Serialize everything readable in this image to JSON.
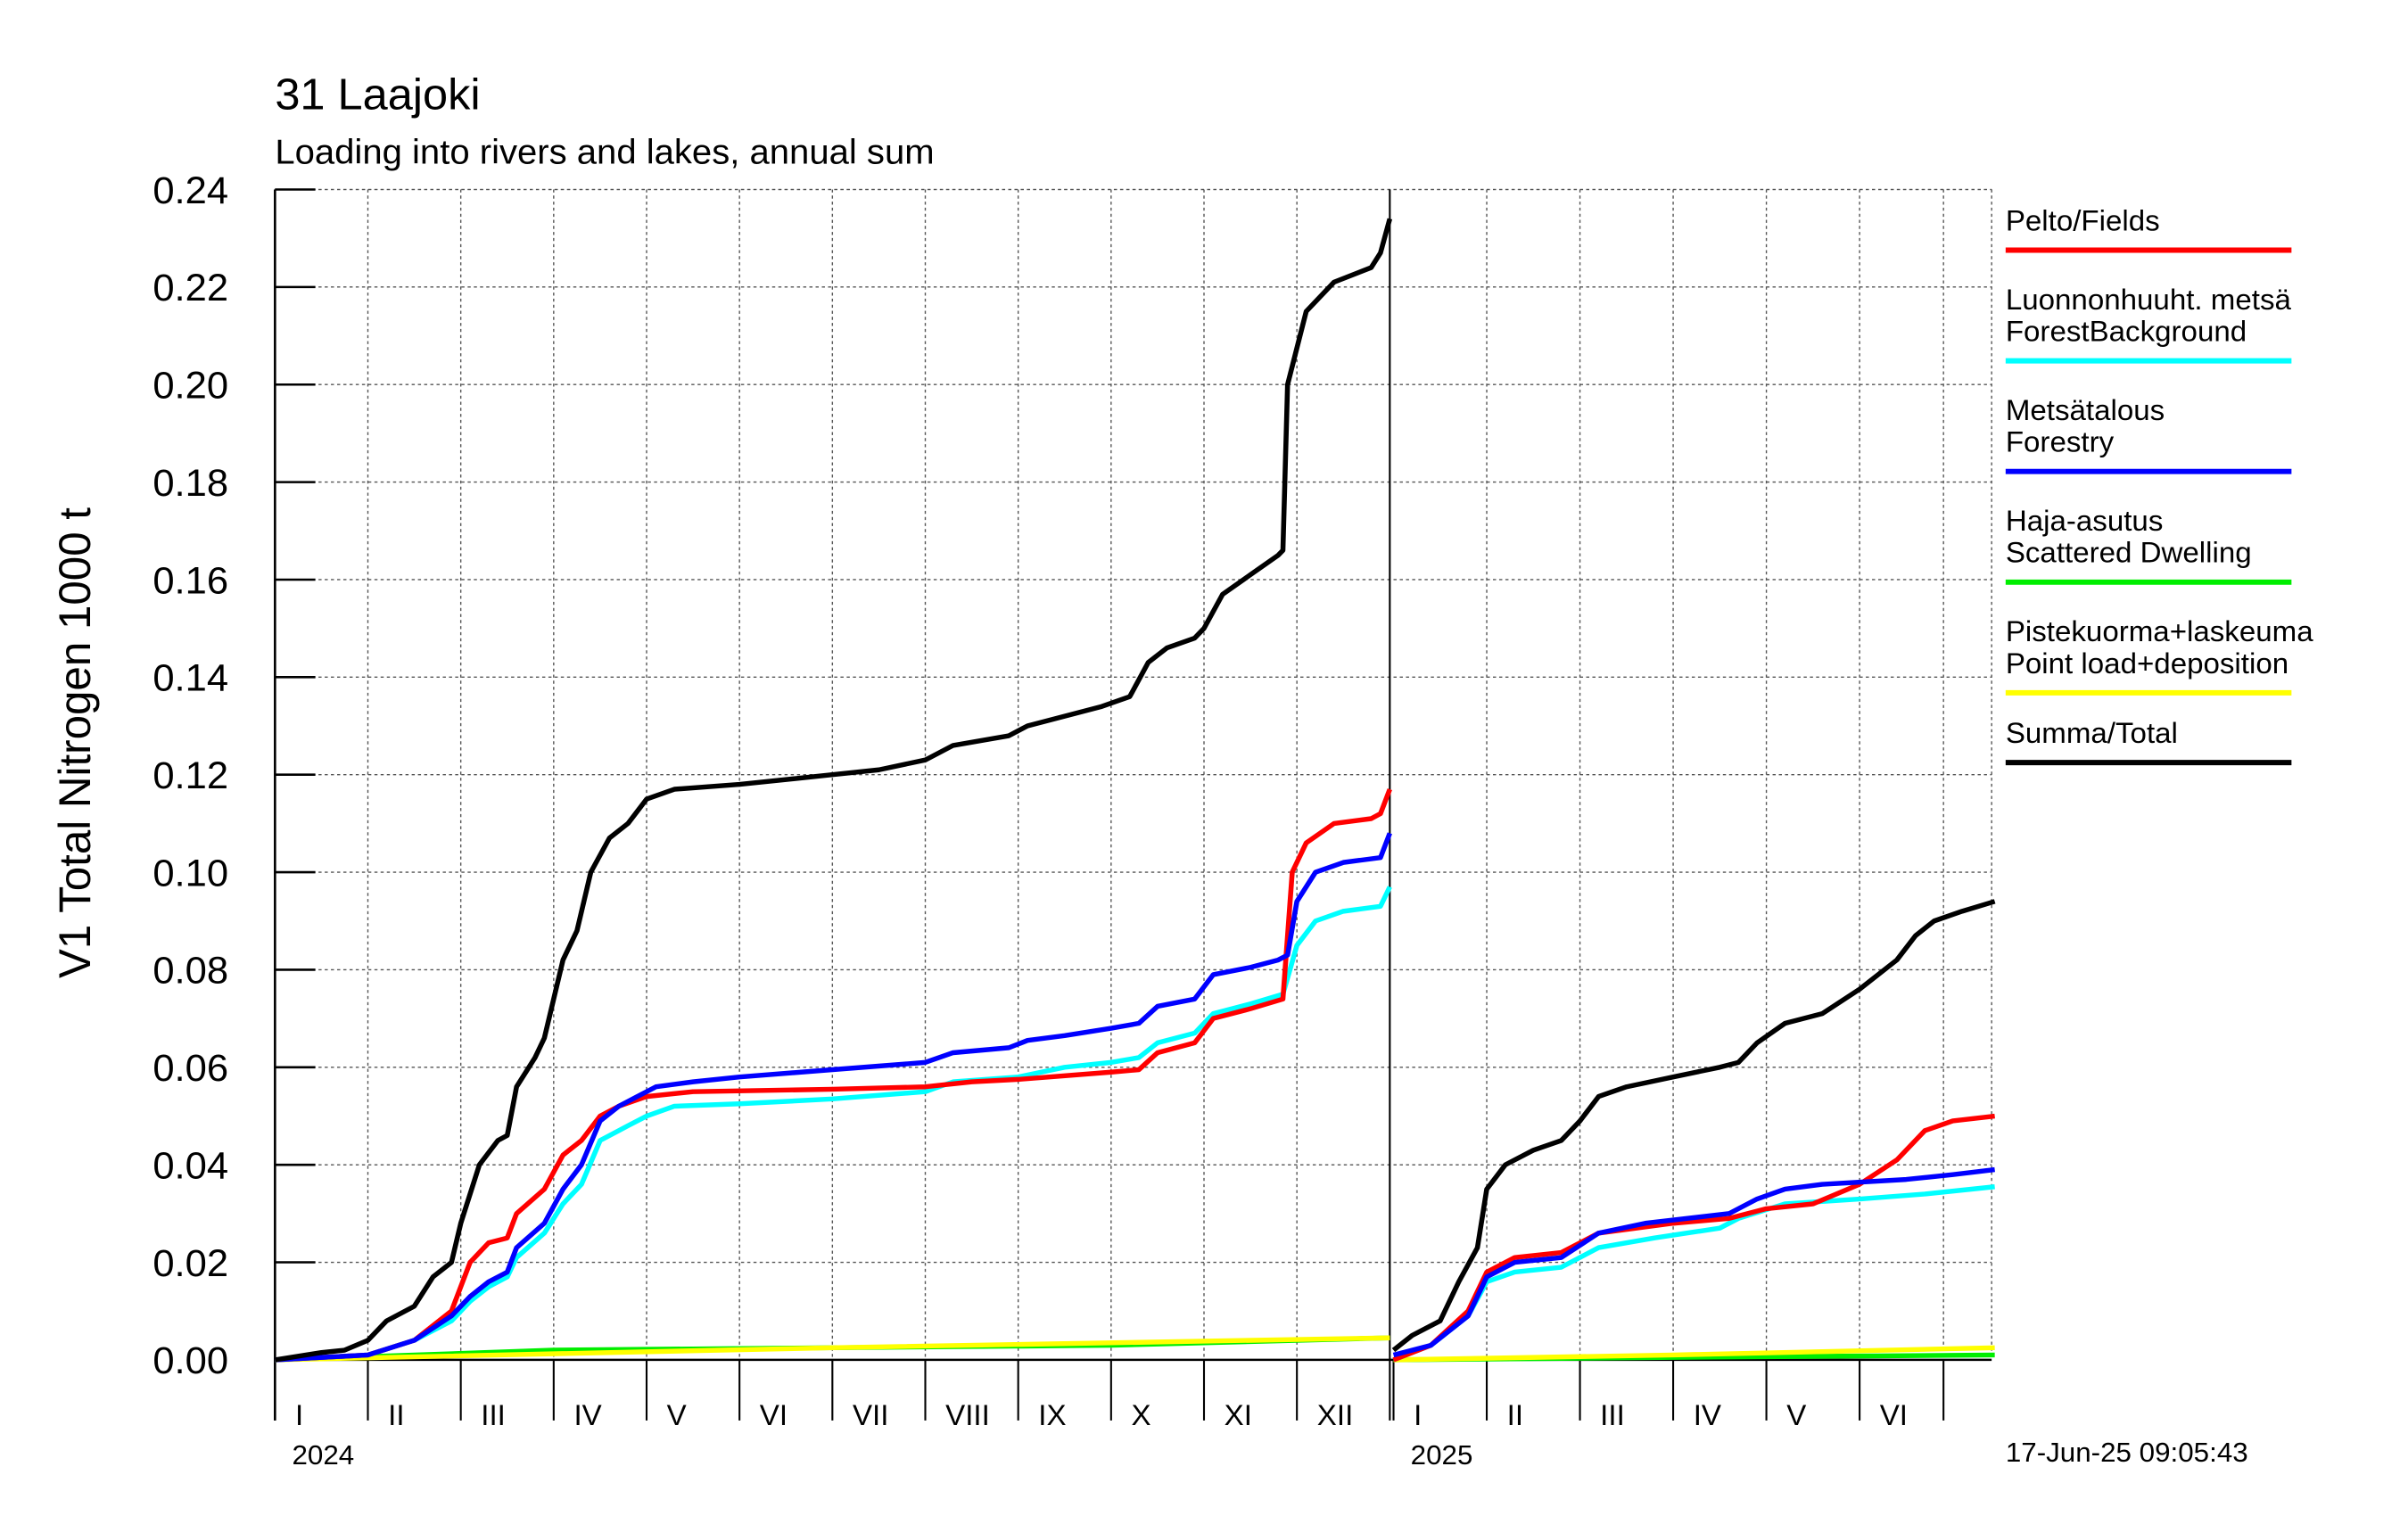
{
  "chart_data": {
    "type": "line",
    "title": "31 Laajoki",
    "subtitle": "Loading into rivers and lakes, annual sum",
    "ylabel": "V1 Total Nitrogen 1000 t",
    "ylim": [
      0,
      0.24
    ],
    "yticks": [
      "0.00",
      "0.02",
      "0.04",
      "0.06",
      "0.08",
      "0.10",
      "0.12",
      "0.14",
      "0.16",
      "0.18",
      "0.20",
      "0.22",
      "0.24"
    ],
    "grid": true,
    "legend_placement": "right",
    "timestamp": "17-Jun-25 09:05:43",
    "periods": [
      {
        "year": "2024",
        "months": [
          "I",
          "II",
          "III",
          "IV",
          "V",
          "VI",
          "VII",
          "VIII",
          "IX",
          "X",
          "XI",
          "XII"
        ],
        "length_months": 12
      },
      {
        "year": "2025",
        "months": [
          "I",
          "II",
          "III",
          "IV",
          "V",
          "VI"
        ],
        "length_months": 6.45
      }
    ],
    "x_unit": "months since start of year",
    "series": [
      {
        "name": "Pelto/Fields",
        "legend": [
          "Pelto/Fields"
        ],
        "color": "#ff0000",
        "2024": [
          [
            0,
            0
          ],
          [
            1,
            0.001
          ],
          [
            1.5,
            0.004
          ],
          [
            1.9,
            0.01
          ],
          [
            2.1,
            0.02
          ],
          [
            2.3,
            0.024
          ],
          [
            2.5,
            0.025
          ],
          [
            2.6,
            0.03
          ],
          [
            2.9,
            0.035
          ],
          [
            3.1,
            0.042
          ],
          [
            3.3,
            0.045
          ],
          [
            3.5,
            0.05
          ],
          [
            3.7,
            0.052
          ],
          [
            4,
            0.054
          ],
          [
            4.5,
            0.055
          ],
          [
            6,
            0.0555
          ],
          [
            7,
            0.056
          ],
          [
            7.5,
            0.057
          ],
          [
            8,
            0.0575
          ],
          [
            9,
            0.059
          ],
          [
            9.3,
            0.0595
          ],
          [
            9.5,
            0.063
          ],
          [
            9.9,
            0.065
          ],
          [
            10.1,
            0.07
          ],
          [
            10.5,
            0.072
          ],
          [
            10.85,
            0.074
          ],
          [
            10.95,
            0.1
          ],
          [
            11.1,
            0.106
          ],
          [
            11.4,
            0.11
          ],
          [
            11.8,
            0.111
          ],
          [
            11.9,
            0.112
          ],
          [
            12,
            0.117
          ]
        ],
        "2025": [
          [
            0,
            0
          ],
          [
            0.4,
            0.003
          ],
          [
            0.8,
            0.01
          ],
          [
            1.0,
            0.018
          ],
          [
            1.3,
            0.021
          ],
          [
            1.8,
            0.022
          ],
          [
            2.2,
            0.026
          ],
          [
            3,
            0.028
          ],
          [
            3.6,
            0.029
          ],
          [
            4,
            0.031
          ],
          [
            4.5,
            0.032
          ],
          [
            5,
            0.036
          ],
          [
            5.4,
            0.041
          ],
          [
            5.7,
            0.047
          ],
          [
            6,
            0.049
          ],
          [
            6.45,
            0.05
          ]
        ]
      },
      {
        "name": "ForestBackground",
        "legend": [
          "Luonnonhuuht. metsä",
          "ForestBackground"
        ],
        "color": "#00ffff",
        "2024": [
          [
            0,
            0
          ],
          [
            1,
            0.001
          ],
          [
            1.5,
            0.004
          ],
          [
            1.9,
            0.008
          ],
          [
            2.1,
            0.012
          ],
          [
            2.3,
            0.015
          ],
          [
            2.5,
            0.017
          ],
          [
            2.6,
            0.021
          ],
          [
            2.9,
            0.026
          ],
          [
            3.1,
            0.032
          ],
          [
            3.3,
            0.036
          ],
          [
            3.5,
            0.045
          ],
          [
            3.8,
            0.048
          ],
          [
            4,
            0.05
          ],
          [
            4.3,
            0.052
          ],
          [
            5,
            0.0525
          ],
          [
            6,
            0.0535
          ],
          [
            7,
            0.055
          ],
          [
            7.3,
            0.057
          ],
          [
            8,
            0.058
          ],
          [
            8.5,
            0.06
          ],
          [
            9,
            0.061
          ],
          [
            9.3,
            0.062
          ],
          [
            9.5,
            0.065
          ],
          [
            9.9,
            0.067
          ],
          [
            10.1,
            0.071
          ],
          [
            10.5,
            0.073
          ],
          [
            10.85,
            0.075
          ],
          [
            11.0,
            0.085
          ],
          [
            11.2,
            0.09
          ],
          [
            11.5,
            0.092
          ],
          [
            11.9,
            0.093
          ],
          [
            12,
            0.097
          ]
        ],
        "2025": [
          [
            0,
            0
          ],
          [
            0.4,
            0.003
          ],
          [
            0.8,
            0.009
          ],
          [
            1.0,
            0.016
          ],
          [
            1.3,
            0.018
          ],
          [
            1.8,
            0.019
          ],
          [
            2.2,
            0.023
          ],
          [
            2.8,
            0.025
          ],
          [
            3.5,
            0.027
          ],
          [
            3.7,
            0.029
          ],
          [
            4.2,
            0.032
          ],
          [
            5,
            0.033
          ],
          [
            5.7,
            0.034
          ],
          [
            6.45,
            0.0355
          ]
        ]
      },
      {
        "name": "Forestry",
        "legend": [
          "Metsätalous",
          "Forestry"
        ],
        "color": "#0000ff",
        "2024": [
          [
            0,
            0
          ],
          [
            1,
            0.001
          ],
          [
            1.5,
            0.004
          ],
          [
            1.9,
            0.009
          ],
          [
            2.1,
            0.013
          ],
          [
            2.3,
            0.016
          ],
          [
            2.5,
            0.018
          ],
          [
            2.6,
            0.023
          ],
          [
            2.9,
            0.028
          ],
          [
            3.1,
            0.035
          ],
          [
            3.3,
            0.04
          ],
          [
            3.5,
            0.049
          ],
          [
            3.7,
            0.052
          ],
          [
            3.9,
            0.054
          ],
          [
            4.1,
            0.056
          ],
          [
            4.5,
            0.057
          ],
          [
            5,
            0.058
          ],
          [
            6,
            0.0595
          ],
          [
            7,
            0.061
          ],
          [
            7.3,
            0.063
          ],
          [
            7.9,
            0.064
          ],
          [
            8.1,
            0.0655
          ],
          [
            8.5,
            0.0665
          ],
          [
            9,
            0.068
          ],
          [
            9.3,
            0.069
          ],
          [
            9.5,
            0.0725
          ],
          [
            9.9,
            0.074
          ],
          [
            10.1,
            0.079
          ],
          [
            10.5,
            0.0805
          ],
          [
            10.8,
            0.082
          ],
          [
            10.9,
            0.083
          ],
          [
            11.0,
            0.094
          ],
          [
            11.2,
            0.1
          ],
          [
            11.5,
            0.102
          ],
          [
            11.9,
            0.103
          ],
          [
            12,
            0.108
          ]
        ],
        "2025": [
          [
            0,
            0.001
          ],
          [
            0.4,
            0.003
          ],
          [
            0.8,
            0.009
          ],
          [
            1.0,
            0.017
          ],
          [
            1.3,
            0.02
          ],
          [
            1.8,
            0.021
          ],
          [
            2.2,
            0.026
          ],
          [
            2.7,
            0.028
          ],
          [
            3.6,
            0.03
          ],
          [
            3.9,
            0.033
          ],
          [
            4.2,
            0.035
          ],
          [
            4.6,
            0.036
          ],
          [
            5.5,
            0.037
          ],
          [
            6,
            0.038
          ],
          [
            6.45,
            0.039
          ]
        ]
      },
      {
        "name": "Scattered Dwelling",
        "legend": [
          "Haja-asutus",
          "Scattered Dwelling"
        ],
        "color": "#00ee00",
        "2024": [
          [
            0,
            0
          ],
          [
            3,
            0.002
          ],
          [
            6,
            0.0025
          ],
          [
            9,
            0.003
          ],
          [
            11,
            0.004
          ],
          [
            12,
            0.0045
          ]
        ],
        "2025": [
          [
            0,
            0
          ],
          [
            3,
            0.0005
          ],
          [
            6.45,
            0.001
          ]
        ]
      },
      {
        "name": "Point load+deposition",
        "legend": [
          "Pistekuorma+laskeuma",
          "Point load+deposition"
        ],
        "color": "#ffff00",
        "2024": [
          [
            0,
            0
          ],
          [
            6,
            0.0025
          ],
          [
            12,
            0.0045
          ]
        ],
        "2025": [
          [
            0,
            0
          ],
          [
            3,
            0.001
          ],
          [
            6.45,
            0.0025
          ]
        ]
      },
      {
        "name": "Summa/Total",
        "legend": [
          "Summa/Total"
        ],
        "color": "#000000",
        "2024": [
          [
            0,
            0
          ],
          [
            0.5,
            0.0015
          ],
          [
            0.75,
            0.002
          ],
          [
            1.0,
            0.004
          ],
          [
            1.2,
            0.008
          ],
          [
            1.5,
            0.011
          ],
          [
            1.7,
            0.017
          ],
          [
            1.9,
            0.02
          ],
          [
            2.0,
            0.028
          ],
          [
            2.2,
            0.04
          ],
          [
            2.4,
            0.045
          ],
          [
            2.5,
            0.046
          ],
          [
            2.6,
            0.056
          ],
          [
            2.8,
            0.062
          ],
          [
            2.9,
            0.066
          ],
          [
            3.1,
            0.082
          ],
          [
            3.25,
            0.088
          ],
          [
            3.4,
            0.1
          ],
          [
            3.6,
            0.107
          ],
          [
            3.8,
            0.11
          ],
          [
            4.0,
            0.115
          ],
          [
            4.3,
            0.117
          ],
          [
            5,
            0.118
          ],
          [
            6,
            0.12
          ],
          [
            6.5,
            0.121
          ],
          [
            7.0,
            0.123
          ],
          [
            7.3,
            0.126
          ],
          [
            7.9,
            0.128
          ],
          [
            8.1,
            0.13
          ],
          [
            8.5,
            0.132
          ],
          [
            8.9,
            0.134
          ],
          [
            9.2,
            0.136
          ],
          [
            9.4,
            0.143
          ],
          [
            9.6,
            0.146
          ],
          [
            9.9,
            0.148
          ],
          [
            10.0,
            0.15
          ],
          [
            10.2,
            0.157
          ],
          [
            10.5,
            0.161
          ],
          [
            10.8,
            0.165
          ],
          [
            10.85,
            0.166
          ],
          [
            10.9,
            0.2
          ],
          [
            11.1,
            0.215
          ],
          [
            11.4,
            0.221
          ],
          [
            11.8,
            0.224
          ],
          [
            11.9,
            0.227
          ],
          [
            12.0,
            0.234
          ]
        ],
        "2025": [
          [
            0,
            0.002
          ],
          [
            0.2,
            0.005
          ],
          [
            0.5,
            0.008
          ],
          [
            0.7,
            0.016
          ],
          [
            0.9,
            0.023
          ],
          [
            1.0,
            0.035
          ],
          [
            1.2,
            0.04
          ],
          [
            1.5,
            0.043
          ],
          [
            1.8,
            0.045
          ],
          [
            2.0,
            0.049
          ],
          [
            2.2,
            0.054
          ],
          [
            2.5,
            0.056
          ],
          [
            3,
            0.058
          ],
          [
            3.5,
            0.06
          ],
          [
            3.7,
            0.061
          ],
          [
            3.9,
            0.065
          ],
          [
            4.2,
            0.069
          ],
          [
            4.6,
            0.071
          ],
          [
            5,
            0.076
          ],
          [
            5.4,
            0.082
          ],
          [
            5.6,
            0.087
          ],
          [
            5.8,
            0.09
          ],
          [
            6.1,
            0.092
          ],
          [
            6.45,
            0.094
          ]
        ]
      }
    ]
  }
}
